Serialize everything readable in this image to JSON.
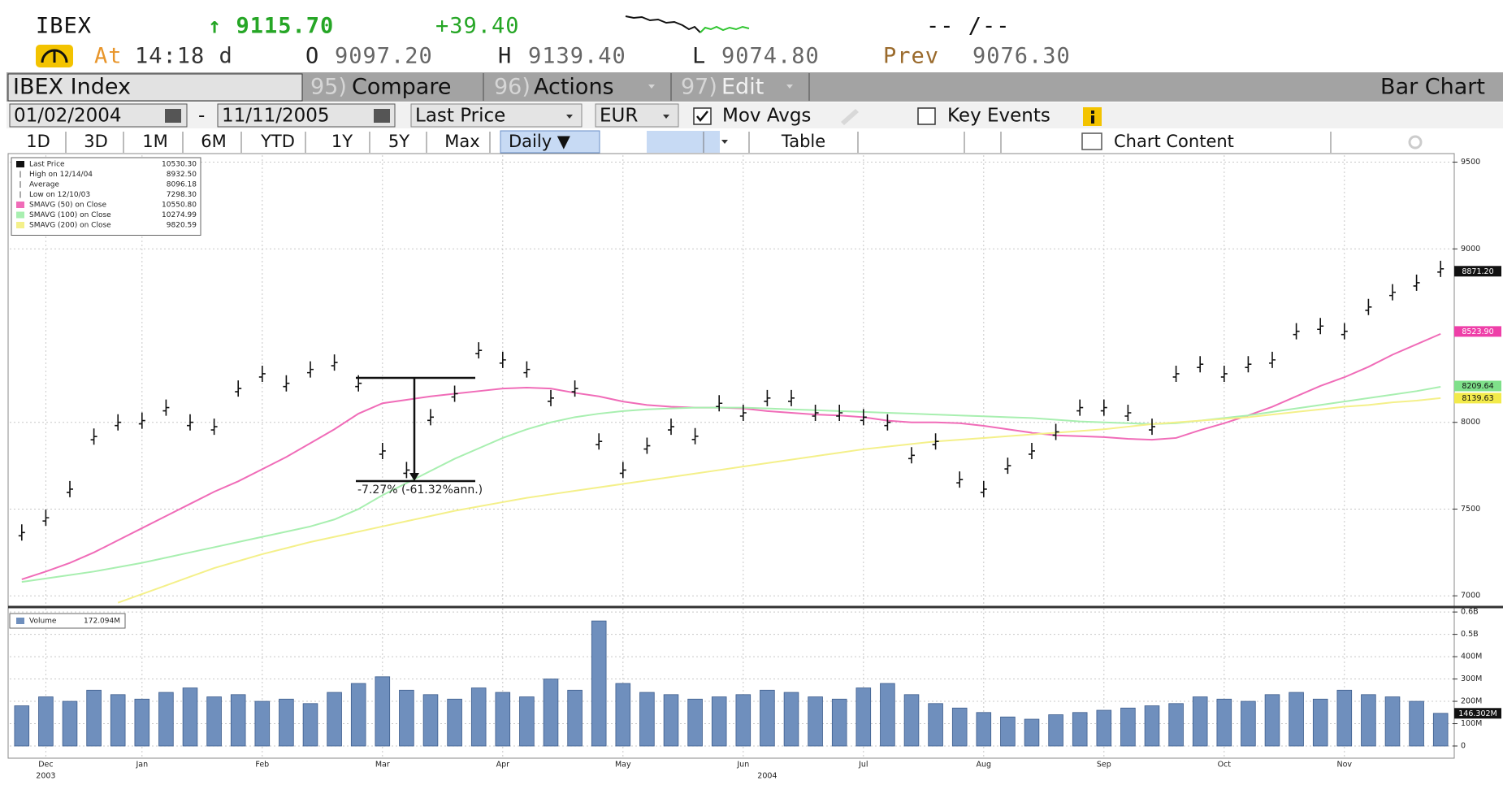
{
  "header": {
    "ticker": "IBEX",
    "last": "↑ 9115.70",
    "change": "+39.40",
    "range": "-- /--",
    "at_label": "At",
    "time": "14:18 d",
    "open_label": "O",
    "open": "9097.20",
    "high_label": "H",
    "high": "9139.40",
    "low_label": "L",
    "low": "9074.80",
    "prev_label": "Prev",
    "prev": "9076.30"
  },
  "toolbar": {
    "security": "IBEX Index",
    "menu": [
      {
        "num": "95)",
        "label": "Compare"
      },
      {
        "num": "96)",
        "label": "Actions"
      },
      {
        "num": "97)",
        "label": "Edit"
      }
    ],
    "chart_type": "Bar Chart"
  },
  "controls": {
    "start_date": "01/02/2004",
    "separator": "-",
    "end_date": "11/11/2005",
    "field": "Last Price",
    "currency": "EUR",
    "mov_avgs": "Mov Avgs",
    "key_events": "Key Events"
  },
  "periods": [
    "1D",
    "3D",
    "1M",
    "6M",
    "YTD",
    "1Y",
    "5Y",
    "Max"
  ],
  "frequency": "Daily ▼",
  "table_button": "Table",
  "chart_content": "Chart Content",
  "chart_data": [
    {
      "type": "ohlc",
      "categories": [
        null,
        "Dec",
        null,
        null,
        null,
        "Jan",
        null,
        null,
        null,
        null,
        "Feb",
        null,
        null,
        null,
        null,
        "Mar",
        null,
        null,
        null,
        null,
        "Apr",
        null,
        null,
        null,
        null,
        "May",
        null,
        null,
        null,
        null,
        "Jun",
        null,
        null,
        null,
        null,
        "Jul",
        null,
        null,
        null,
        null,
        "Aug",
        null,
        null,
        null,
        null,
        "Sep",
        null,
        null,
        null,
        null,
        "Oct",
        null,
        null,
        null,
        null,
        "Nov",
        null,
        null,
        null,
        null
      ],
      "year_labels": [
        null,
        "2003",
        null,
        null,
        null,
        null,
        null,
        null,
        null,
        null,
        null,
        null,
        null,
        null,
        null,
        null,
        null,
        null,
        null,
        null,
        null,
        null,
        null,
        null,
        null,
        null,
        null,
        null,
        null,
        null,
        null,
        "2004",
        null,
        null,
        null,
        null,
        null,
        null,
        null,
        null,
        null,
        null,
        null,
        null,
        null,
        null,
        null,
        null,
        null,
        null,
        null,
        null,
        null,
        null,
        null,
        null,
        null,
        null,
        null,
        null
      ],
      "series": [
        {
          "name": "Last Price",
          "legend_value": "10530.30",
          "color": "#111111",
          "values": [
            7365,
            7450,
            7615,
            7918,
            8000,
            8010,
            8085,
            8000,
            7975,
            8195,
            8280,
            8225,
            8305,
            8345,
            8225,
            7835,
            7725,
            8030,
            8165,
            8415,
            8360,
            8305,
            8140,
            8195,
            7890,
            7725,
            7865,
            7975,
            7920,
            8110,
            8055,
            8140,
            8140,
            8055,
            8055,
            8030,
            8000,
            7810,
            7890,
            7670,
            7615,
            7750,
            7835,
            7945,
            8085,
            8085,
            8055,
            7975,
            8280,
            8335,
            8280,
            8335,
            8360,
            8525,
            8555,
            8525,
            8665,
            8750,
            8805,
            8885
          ]
        },
        {
          "name": "SMAVG (50)  on Close",
          "legend_value": "10550.80",
          "color": "#f06cb8",
          "type": "line",
          "values": [
            7095,
            7140,
            7190,
            7250,
            7320,
            7390,
            7460,
            7530,
            7600,
            7660,
            7730,
            7800,
            7880,
            7960,
            8050,
            8110,
            8130,
            8150,
            8165,
            8180,
            8195,
            8200,
            8195,
            8170,
            8150,
            8120,
            8100,
            8090,
            8085,
            8085,
            8080,
            8065,
            8055,
            8045,
            8040,
            8030,
            8010,
            8000,
            8000,
            7995,
            7980,
            7960,
            7940,
            7925,
            7920,
            7915,
            7905,
            7900,
            7910,
            7955,
            7995,
            8040,
            8090,
            8150,
            8210,
            8260,
            8320,
            8390,
            8450,
            8510
          ]
        },
        {
          "name": "SMAVG (100)  on Close",
          "legend_value": "10274.99",
          "color": "#a8efb0",
          "type": "line",
          "values": [
            7080,
            7100,
            7120,
            7140,
            7165,
            7190,
            7220,
            7250,
            7280,
            7310,
            7340,
            7370,
            7400,
            7440,
            7500,
            7580,
            7650,
            7720,
            7790,
            7850,
            7910,
            7960,
            8000,
            8030,
            8050,
            8065,
            8075,
            8080,
            8085,
            8085,
            8085,
            8080,
            8075,
            8070,
            8065,
            8060,
            8055,
            8050,
            8045,
            8040,
            8035,
            8030,
            8025,
            8015,
            8005,
            8000,
            7995,
            7990,
            7995,
            8010,
            8025,
            8040,
            8060,
            8080,
            8100,
            8120,
            8140,
            8160,
            8180,
            8205
          ]
        },
        {
          "name": "SMAVG (200)  on Close",
          "legend_value": "9820.59",
          "color": "#f4f08a",
          "type": "line",
          "values": [
            null,
            null,
            null,
            null,
            6960,
            7010,
            7060,
            7110,
            7160,
            7200,
            7240,
            7275,
            7310,
            7340,
            7370,
            7400,
            7430,
            7460,
            7490,
            7515,
            7540,
            7565,
            7585,
            7605,
            7625,
            7645,
            7665,
            7685,
            7705,
            7725,
            7745,
            7765,
            7785,
            7805,
            7825,
            7845,
            7860,
            7875,
            7890,
            7900,
            7910,
            7920,
            7930,
            7940,
            7950,
            7960,
            7975,
            7990,
            8000,
            8010,
            8020,
            8030,
            8045,
            8060,
            8075,
            8090,
            8100,
            8115,
            8125,
            8140
          ]
        }
      ],
      "legend_stats": [
        {
          "label": "High on 12/14/04",
          "value": "8932.50"
        },
        {
          "label": "Average",
          "value": "8096.18"
        },
        {
          "label": "Low on 12/10/03",
          "value": "7298.30"
        }
      ],
      "annotation": "-7.27% (-61.32%ann.)",
      "tags": [
        {
          "value": 8871.2,
          "label": "8871.20",
          "color": "#111111",
          "text_color": "#ffffff"
        },
        {
          "value": 8523.9,
          "label": "8523.90",
          "color": "#ee3fa8",
          "text_color": "#ffffff"
        },
        {
          "value": 8209.64,
          "label": "8209.64",
          "color": "#7fe08a",
          "text_color": "#111111"
        },
        {
          "value": 8139.63,
          "label": "8139.63",
          "color": "#f2ea4a",
          "text_color": "#111111"
        }
      ],
      "ylim": [
        6940,
        9540
      ],
      "yticks": [
        7000,
        7500,
        8000,
        9000,
        9500
      ],
      "grid": true
    },
    {
      "type": "bar",
      "series": [
        {
          "name": "Volume",
          "legend_value": "172.094M",
          "color": "#6f8fbd",
          "values": [
            180,
            220,
            200,
            250,
            230,
            210,
            240,
            260,
            220,
            230,
            200,
            210,
            190,
            240,
            280,
            310,
            250,
            230,
            210,
            260,
            240,
            220,
            300,
            250,
            560,
            280,
            240,
            230,
            210,
            220,
            230,
            250,
            240,
            220,
            210,
            260,
            280,
            230,
            190,
            170,
            150,
            130,
            120,
            140,
            150,
            160,
            170,
            180,
            190,
            220,
            210,
            200,
            230,
            240,
            210,
            250,
            230,
            220,
            200,
            146.302
          ]
        }
      ],
      "tags": [
        {
          "value": 146.302,
          "label": "146.302M",
          "color": "#111111",
          "text_color": "#ffffff"
        }
      ],
      "ylim": [
        0,
        615
      ],
      "yticks": [
        {
          "value": 600,
          "label": "0.6B"
        },
        {
          "value": 500,
          "label": "0.5B"
        },
        {
          "value": 400,
          "label": "400M"
        },
        {
          "value": 300,
          "label": "300M"
        },
        {
          "value": 200,
          "label": "200M"
        },
        {
          "value": 100,
          "label": "100M"
        },
        0
      ],
      "grid": true
    }
  ]
}
